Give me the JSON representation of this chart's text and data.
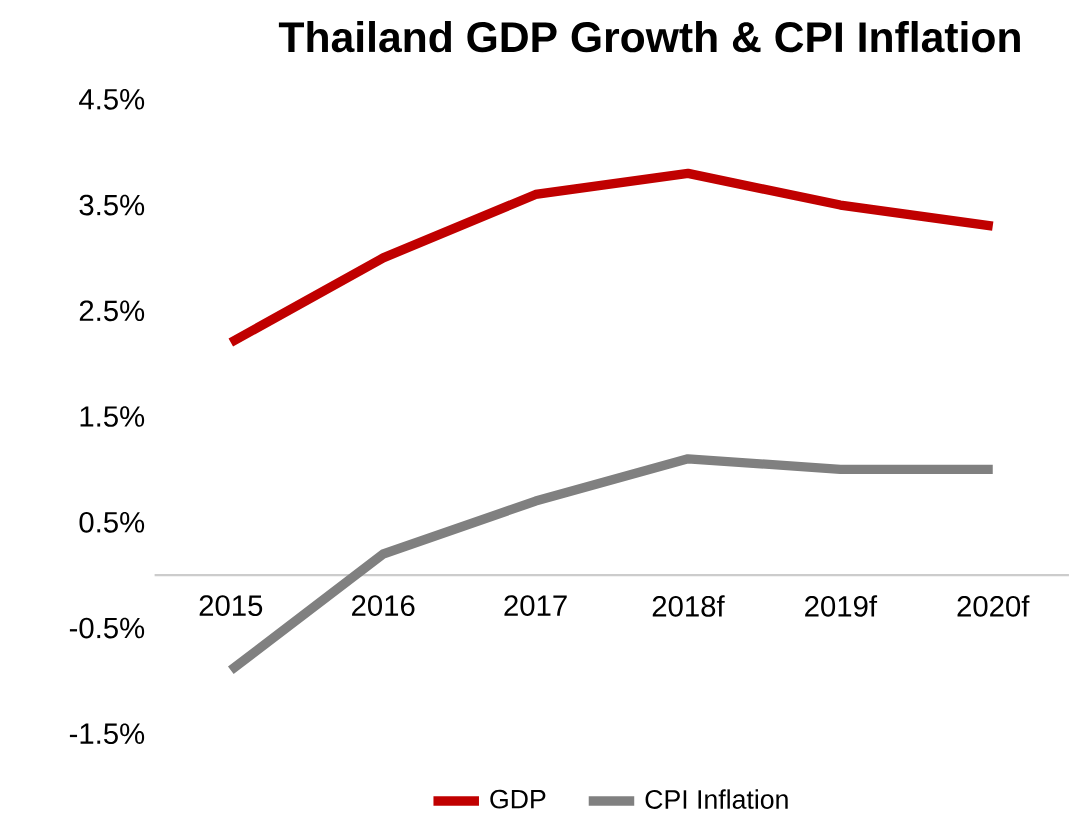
{
  "chart_data": {
    "type": "line",
    "title": "Thailand GDP Growth & CPI Inflation",
    "categories": [
      "2015",
      "2016",
      "2017",
      "2018f",
      "2019f",
      "2020f"
    ],
    "series": [
      {
        "name": "GDP",
        "color": "#c00000",
        "values": [
          2.2,
          3.0,
          3.6,
          3.8,
          3.5,
          3.3
        ]
      },
      {
        "name": "CPI Inflation",
        "color": "#808080",
        "values": [
          -0.9,
          0.2,
          0.7,
          1.1,
          1.0,
          1.0
        ]
      }
    ],
    "ylim": [
      -1.5,
      4.5
    ],
    "yticks": [
      {
        "value": -1.5,
        "label": "-1.5%"
      },
      {
        "value": -0.5,
        "label": "-0.5%"
      },
      {
        "value": 0.5,
        "label": "0.5%"
      },
      {
        "value": 1.5,
        "label": "1.5%"
      },
      {
        "value": 2.5,
        "label": "2.5%"
      },
      {
        "value": 3.5,
        "label": "3.5%"
      },
      {
        "value": 4.5,
        "label": "4.5%"
      }
    ],
    "grid": false,
    "legend": "bottom",
    "marker": "none",
    "line_style": "solid"
  }
}
